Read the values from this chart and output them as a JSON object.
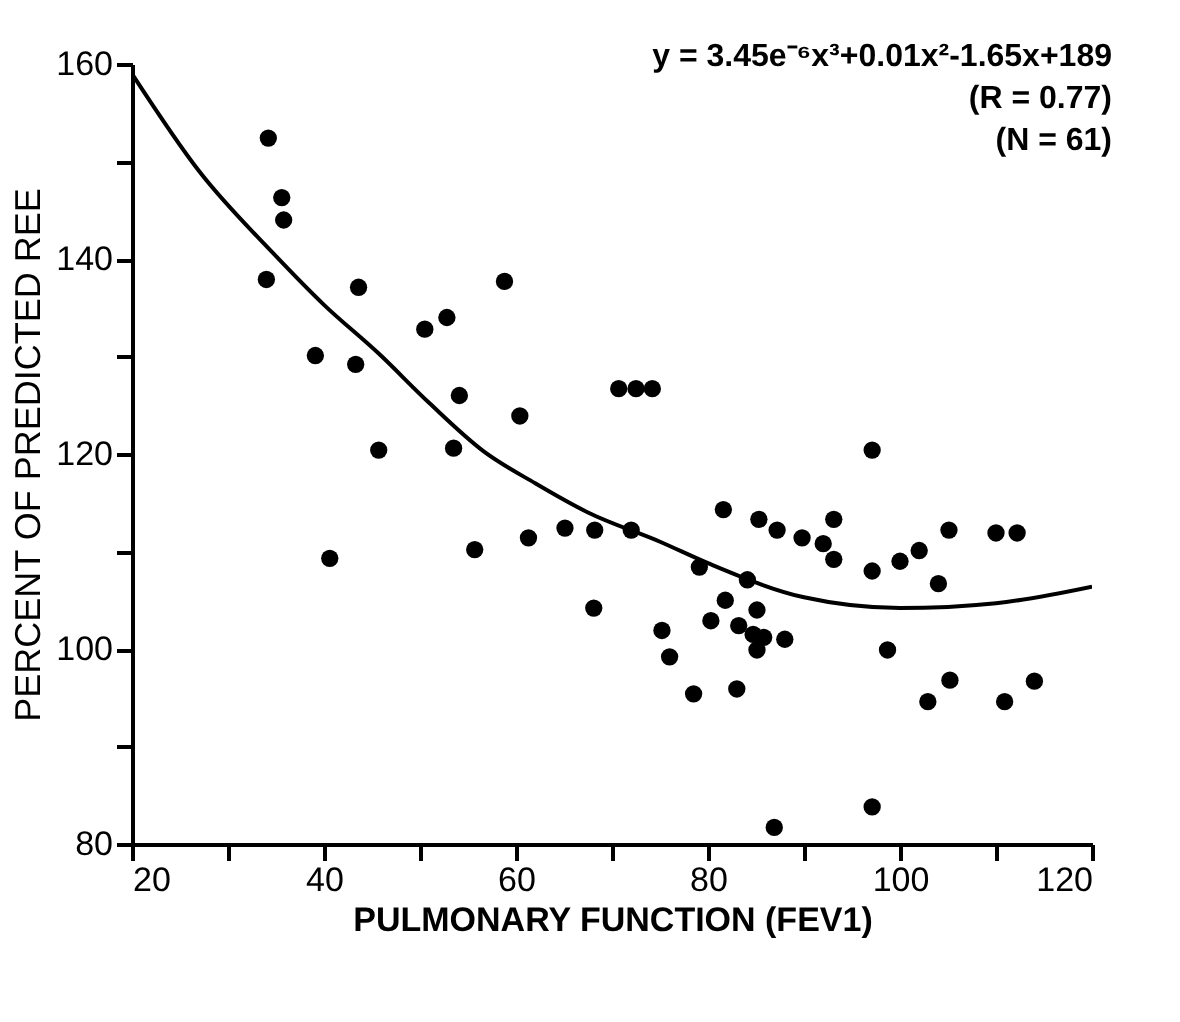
{
  "chart_data": {
    "type": "scatter",
    "xlabel": "PULMONARY FUNCTION (FEV1)",
    "ylabel": "PERCENT OF PREDICTED REE",
    "annotations": [
      "y = 3.45e⁻⁶x³+0.01x²-1.65x+189",
      "(R = 0.77)",
      "(N = 61)"
    ],
    "xlim": [
      20,
      120
    ],
    "ylim": [
      80,
      160
    ],
    "xticks": [
      20,
      {
        "value": 30,
        "label": null
      },
      40,
      {
        "value": 50,
        "label": null
      },
      60,
      {
        "value": 70,
        "label": null
      },
      80,
      {
        "value": 90,
        "label": null
      },
      100,
      {
        "value": 110,
        "label": null
      },
      120
    ],
    "yticks": [
      80,
      {
        "value": 90,
        "label": null
      },
      100,
      {
        "value": 110,
        "label": null
      },
      120,
      {
        "value": 130,
        "label": null
      },
      140,
      {
        "value": 150,
        "label": null
      },
      160
    ],
    "grid": false,
    "marker": "circle",
    "series": [
      {
        "color": "#000000",
        "x": [
          97.1,
          81.6,
          85.3,
          87.2,
          93.1,
          89.8,
          92.0,
          93.1,
          105.1,
          110.0,
          112.2,
          102.0,
          100.0,
          97.1,
          104.0,
          61.3,
          65.1,
          68.2,
          72.0,
          79.1,
          84.1,
          68.1,
          81.8,
          85.1,
          80.3,
          83.2,
          84.7,
          85.8,
          88.0,
          85.1,
          75.2,
          76.0,
          98.7,
          105.2,
          102.9,
          78.5,
          83.0,
          110.9,
          114.0,
          97.1,
          86.9,
          34.2,
          35.6,
          35.8,
          34.0,
          43.6,
          58.8,
          52.8,
          50.5,
          39.1,
          43.3,
          54.1,
          60.4,
          45.7,
          53.5,
          40.6,
          55.7,
          70.7,
          72.5,
          74.2
        ],
        "values": [
          120.4,
          114.3,
          113.3,
          112.2,
          113.3,
          111.4,
          110.8,
          109.2,
          112.2,
          111.9,
          111.9,
          110.1,
          109.0,
          108.0,
          106.7,
          111.4,
          112.4,
          112.2,
          112.2,
          108.4,
          107.1,
          104.2,
          105.0,
          104.0,
          102.9,
          102.4,
          101.5,
          101.2,
          101.0,
          99.9,
          101.9,
          99.2,
          99.9,
          96.8,
          94.6,
          95.4,
          95.9,
          94.6,
          96.7,
          83.8,
          81.7,
          152.4,
          146.3,
          144.0,
          137.9,
          137.1,
          137.7,
          134.0,
          132.8,
          130.1,
          129.2,
          126.0,
          123.9,
          120.4,
          120.6,
          109.3,
          110.2,
          126.7,
          126.7,
          126.7
        ]
      },
      {
        "type": "line",
        "color": "#000000",
        "marker": "none",
        "line_style": "solid",
        "x": [
          20,
          27,
          34.8,
          40,
          45.7,
          51,
          56.6,
          62,
          67.5,
          75,
          80,
          90,
          100,
          110,
          120
        ],
        "values": [
          159,
          149,
          140.5,
          135.3,
          130.3,
          125.2,
          120.3,
          117,
          114,
          111,
          108.8,
          105.3,
          104.2,
          104.7,
          106.4
        ]
      }
    ]
  }
}
